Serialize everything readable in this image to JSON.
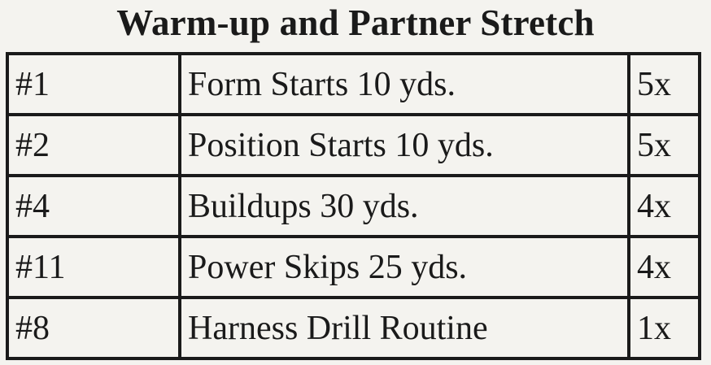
{
  "title": "Warm-up and Partner Stretch",
  "rows": [
    {
      "number": "#1",
      "drill": "Form Starts 10 yds.",
      "reps": "5x"
    },
    {
      "number": "#2",
      "drill": "Position Starts 10 yds.",
      "reps": "5x"
    },
    {
      "number": "#4",
      "drill": "Buildups 30 yds.",
      "reps": "4x"
    },
    {
      "number": "#11",
      "drill": "Power Skips 25 yds.",
      "reps": "4x"
    },
    {
      "number": "#8",
      "drill": "Harness Drill Routine",
      "reps": "1x"
    }
  ]
}
